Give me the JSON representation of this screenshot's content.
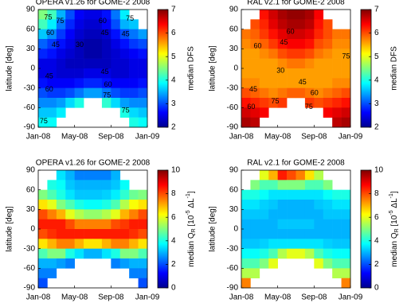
{
  "chart_data": [
    {
      "type": "heatmap",
      "title": "OPERA v1.26 for GOME-2 2008",
      "ylabel": "latitude [deg]",
      "colorbar_label": "median DFS",
      "clim": [
        2,
        7
      ],
      "cticks": [
        2,
        3,
        4,
        5,
        6,
        7
      ],
      "xlim": [
        0,
        12
      ],
      "xticks": [
        {
          "value": 0,
          "label": "Jan-08"
        },
        {
          "value": 4,
          "label": "May-08"
        },
        {
          "value": 8,
          "label": "Sep-08"
        },
        {
          "value": 12,
          "label": "Jan-09"
        }
      ],
      "ylim": [
        -90,
        90
      ],
      "yticks": [
        -90,
        -60,
        -30,
        0,
        30,
        60,
        90
      ],
      "x": [
        0.5,
        1.5,
        2.5,
        3.5,
        4.5,
        5.5,
        6.5,
        7.5,
        8.5,
        9.5,
        10.5,
        11.5
      ],
      "y": [
        82.5,
        67.5,
        52.5,
        37.5,
        22.5,
        7.5,
        -7.5,
        -22.5,
        -37.5,
        -52.5,
        -67.5,
        -82.5
      ],
      "z": [
        [
          4.5,
          4.2,
          3.5,
          3.0,
          2.6,
          2.5,
          2.5,
          2.7,
          3.2,
          3.8,
          null,
          null
        ],
        [
          4.2,
          3.8,
          3.2,
          2.8,
          2.5,
          2.4,
          2.4,
          2.6,
          3.0,
          3.5,
          3.6,
          null
        ],
        [
          3.6,
          3.3,
          2.9,
          2.6,
          2.4,
          2.3,
          2.3,
          2.4,
          2.7,
          3.0,
          3.2,
          3.4
        ],
        [
          3.1,
          2.9,
          2.7,
          2.5,
          2.3,
          2.2,
          2.2,
          2.3,
          2.5,
          2.7,
          2.9,
          3.0
        ],
        [
          2.8,
          2.7,
          2.5,
          2.4,
          2.3,
          2.2,
          2.2,
          2.3,
          2.4,
          2.5,
          2.6,
          2.7
        ],
        [
          2.5,
          2.5,
          2.4,
          2.3,
          2.3,
          2.3,
          2.3,
          2.3,
          2.4,
          2.4,
          2.5,
          2.5
        ],
        [
          2.5,
          2.5,
          2.4,
          2.4,
          2.4,
          2.5,
          2.5,
          2.5,
          2.4,
          2.4,
          2.5,
          2.5
        ],
        [
          2.7,
          2.6,
          2.6,
          2.6,
          2.7,
          2.8,
          2.8,
          2.7,
          2.6,
          2.6,
          2.6,
          2.7
        ],
        [
          3.0,
          2.9,
          2.9,
          3.0,
          3.2,
          3.4,
          3.4,
          3.2,
          3.0,
          2.9,
          2.9,
          3.0
        ],
        [
          3.3,
          3.3,
          3.4,
          3.7,
          4.0,
          null,
          null,
          4.1,
          3.7,
          3.4,
          3.3,
          3.3
        ],
        [
          3.6,
          3.6,
          3.8,
          null,
          null,
          null,
          null,
          null,
          null,
          4.0,
          3.7,
          3.6
        ],
        [
          3.9,
          3.9,
          null,
          null,
          null,
          null,
          null,
          null,
          null,
          null,
          4.0,
          3.9
        ]
      ],
      "contour_labels": [
        75,
        75,
        60,
        45,
        30,
        60,
        45,
        45,
        75,
        45,
        60,
        45,
        60,
        75,
        75,
        75
      ]
    },
    {
      "type": "heatmap",
      "title": "RAL v2.1 for GOME-2 2008",
      "ylabel": "latitude [deg]",
      "colorbar_label": "median DFS",
      "clim": [
        2,
        7
      ],
      "cticks": [
        2,
        3,
        4,
        5,
        6,
        7
      ],
      "xlim": [
        0,
        12
      ],
      "xticks": [
        {
          "value": 0,
          "label": "Jan-08"
        },
        {
          "value": 4,
          "label": "May-08"
        },
        {
          "value": 8,
          "label": "Sep-08"
        },
        {
          "value": 12,
          "label": "Jan-09"
        }
      ],
      "ylim": [
        -90,
        90
      ],
      "yticks": [
        -90,
        -60,
        -30,
        0,
        30,
        60,
        90
      ],
      "x": [
        0.5,
        1.5,
        2.5,
        3.5,
        4.5,
        5.5,
        6.5,
        7.5,
        8.5,
        9.5,
        10.5,
        11.5
      ],
      "y": [
        82.5,
        67.5,
        52.5,
        37.5,
        22.5,
        7.5,
        -7.5,
        -22.5,
        -37.5,
        -52.5,
        -67.5,
        -82.5
      ],
      "z": [
        [
          null,
          null,
          6.3,
          6.6,
          6.8,
          6.9,
          6.9,
          6.8,
          6.4,
          null,
          null,
          null
        ],
        [
          null,
          6.0,
          6.2,
          6.5,
          6.7,
          6.8,
          6.8,
          6.7,
          6.3,
          6.0,
          null,
          null
        ],
        [
          5.8,
          5.9,
          6.1,
          6.3,
          6.5,
          6.6,
          6.6,
          6.5,
          6.2,
          6.0,
          5.8,
          5.8
        ],
        [
          5.7,
          5.8,
          5.9,
          6.1,
          6.3,
          6.4,
          6.4,
          6.3,
          6.0,
          5.9,
          5.7,
          5.7
        ],
        [
          5.6,
          5.6,
          5.7,
          5.8,
          6.0,
          6.1,
          6.1,
          6.0,
          5.8,
          5.7,
          5.6,
          5.6
        ],
        [
          5.6,
          5.6,
          5.6,
          5.6,
          5.7,
          5.8,
          5.8,
          5.7,
          5.6,
          5.6,
          5.6,
          5.6
        ],
        [
          5.6,
          5.6,
          5.6,
          5.6,
          5.6,
          5.6,
          5.6,
          5.6,
          5.6,
          5.6,
          5.6,
          5.6
        ],
        [
          5.7,
          5.7,
          5.6,
          5.6,
          5.6,
          5.6,
          5.6,
          5.6,
          5.6,
          5.6,
          5.7,
          5.7
        ],
        [
          6.0,
          5.9,
          5.8,
          5.7,
          5.8,
          5.9,
          5.9,
          5.8,
          5.7,
          5.8,
          5.9,
          6.0
        ],
        [
          6.3,
          6.2,
          6.1,
          6.0,
          6.1,
          null,
          null,
          6.1,
          6.0,
          6.1,
          6.2,
          6.3
        ],
        [
          6.6,
          6.5,
          6.4,
          null,
          null,
          null,
          null,
          null,
          null,
          6.4,
          6.5,
          6.6
        ],
        [
          6.8,
          6.7,
          null,
          null,
          null,
          null,
          null,
          null,
          null,
          null,
          6.7,
          6.8
        ]
      ],
      "contour_labels": [
        60,
        45,
        60,
        75,
        30,
        45,
        45,
        60,
        60,
        75,
        75
      ]
    },
    {
      "type": "heatmap",
      "title": "OPERA v1.26 for GOME-2 2008",
      "ylabel": "latitude [deg]",
      "colorbar_label_parts": [
        {
          "text": "median Q"
        },
        {
          "text": "R",
          "role": "sub"
        },
        {
          "text": " [10"
        },
        {
          "text": "-5",
          "role": "sup"
        },
        {
          "text": " ΔL"
        },
        {
          "text": "-1",
          "role": "sup"
        },
        {
          "text": "]"
        }
      ],
      "clim": [
        0,
        10
      ],
      "cticks": [
        0,
        2,
        4,
        6,
        8,
        10
      ],
      "xlim": [
        0,
        12
      ],
      "xticks": [
        {
          "value": 0,
          "label": "Jan-08"
        },
        {
          "value": 4,
          "label": "May-08"
        },
        {
          "value": 8,
          "label": "Sep-08"
        },
        {
          "value": 12,
          "label": "Jan-09"
        }
      ],
      "ylim": [
        -90,
        90
      ],
      "yticks": [
        -90,
        -60,
        -30,
        0,
        30,
        60,
        90
      ],
      "x": [
        0.5,
        1.5,
        2.5,
        3.5,
        4.5,
        5.5,
        6.5,
        7.5,
        8.5,
        9.5,
        10.5,
        11.5
      ],
      "y": [
        82.5,
        67.5,
        52.5,
        37.5,
        22.5,
        7.5,
        -7.5,
        -22.5,
        -37.5,
        -52.5,
        -67.5,
        -82.5
      ],
      "z": [
        [
          null,
          null,
          3.5,
          3.0,
          2.5,
          2.5,
          2.5,
          2.5,
          3.0,
          null,
          null,
          null
        ],
        [
          null,
          4.0,
          3.8,
          3.2,
          3.0,
          3.0,
          3.0,
          3.0,
          3.2,
          3.8,
          null,
          null
        ],
        [
          5.0,
          4.5,
          4.0,
          3.5,
          3.2,
          3.2,
          3.2,
          3.3,
          3.6,
          4.2,
          4.8,
          5.0
        ],
        [
          6.5,
          6.0,
          5.0,
          4.5,
          4.0,
          3.8,
          3.8,
          4.0,
          4.5,
          5.5,
          6.2,
          6.5
        ],
        [
          8.0,
          7.5,
          7.0,
          6.0,
          5.5,
          5.2,
          5.2,
          5.5,
          6.0,
          7.0,
          7.5,
          8.0
        ],
        [
          8.5,
          8.5,
          8.5,
          8.0,
          7.5,
          7.5,
          7.5,
          7.5,
          8.0,
          8.2,
          8.5,
          8.5
        ],
        [
          8.0,
          8.3,
          8.5,
          8.5,
          8.5,
          8.5,
          8.5,
          8.5,
          8.5,
          8.5,
          8.3,
          8.0
        ],
        [
          6.5,
          7.0,
          7.5,
          7.5,
          7.0,
          6.5,
          6.5,
          7.0,
          7.5,
          7.5,
          7.0,
          6.5
        ],
        [
          4.5,
          5.0,
          5.0,
          4.0,
          3.5,
          3.0,
          3.0,
          3.5,
          4.0,
          5.0,
          5.0,
          4.5
        ],
        [
          3.0,
          3.0,
          2.8,
          2.5,
          null,
          null,
          null,
          null,
          2.5,
          2.8,
          3.0,
          3.0
        ],
        [
          2.5,
          2.5,
          null,
          null,
          null,
          null,
          null,
          null,
          null,
          null,
          2.5,
          2.5
        ],
        [
          2.0,
          null,
          null,
          null,
          null,
          null,
          null,
          null,
          null,
          null,
          null,
          2.0
        ]
      ]
    },
    {
      "type": "heatmap",
      "title": "RAL v2.1 for GOME-2 2008",
      "ylabel": "latitude [deg]",
      "colorbar_label_parts": [
        {
          "text": "median Q"
        },
        {
          "text": "R",
          "role": "sub"
        },
        {
          "text": " [10"
        },
        {
          "text": "-5",
          "role": "sup"
        },
        {
          "text": " ΔL"
        },
        {
          "text": "-1",
          "role": "sup"
        },
        {
          "text": "]"
        }
      ],
      "clim": [
        0,
        10
      ],
      "cticks": [
        0,
        2,
        4,
        6,
        8,
        10
      ],
      "xlim": [
        0,
        12
      ],
      "xticks": [
        {
          "value": 0,
          "label": "Jan-08"
        },
        {
          "value": 4,
          "label": "May-08"
        },
        {
          "value": 8,
          "label": "Sep-08"
        },
        {
          "value": 12,
          "label": "Jan-09"
        }
      ],
      "ylim": [
        -90,
        90
      ],
      "yticks": [
        -90,
        -60,
        -30,
        0,
        30,
        60,
        90
      ],
      "x": [
        0.5,
        1.5,
        2.5,
        3.5,
        4.5,
        5.5,
        6.5,
        7.5,
        8.5,
        9.5,
        10.5,
        11.5
      ],
      "y": [
        82.5,
        67.5,
        52.5,
        37.5,
        22.5,
        7.5,
        -7.5,
        -22.5,
        -37.5,
        -52.5,
        -67.5,
        -82.5
      ],
      "z": [
        [
          null,
          null,
          6.0,
          7.0,
          8.5,
          8.0,
          7.5,
          6.5,
          5.5,
          null,
          null,
          null
        ],
        [
          null,
          5.0,
          4.5,
          4.5,
          5.0,
          5.0,
          5.0,
          4.5,
          4.5,
          5.0,
          null,
          null
        ],
        [
          4.0,
          4.0,
          3.8,
          3.5,
          3.5,
          3.5,
          3.5,
          3.5,
          3.5,
          3.8,
          4.0,
          4.0
        ],
        [
          3.5,
          3.5,
          3.3,
          3.2,
          3.0,
          3.0,
          3.0,
          3.0,
          3.2,
          3.3,
          3.5,
          3.5
        ],
        [
          3.2,
          3.2,
          3.2,
          3.0,
          3.0,
          3.0,
          3.0,
          3.0,
          3.0,
          3.2,
          3.2,
          3.2
        ],
        [
          3.0,
          3.0,
          3.0,
          3.0,
          3.2,
          3.2,
          3.2,
          3.2,
          3.0,
          3.0,
          3.0,
          3.0
        ],
        [
          3.0,
          3.0,
          3.0,
          3.0,
          3.0,
          3.0,
          3.0,
          3.0,
          3.0,
          3.0,
          3.0,
          3.0
        ],
        [
          3.2,
          3.2,
          3.3,
          3.5,
          3.5,
          3.5,
          3.5,
          3.5,
          3.5,
          3.3,
          3.2,
          3.2
        ],
        [
          3.8,
          3.8,
          4.0,
          4.5,
          5.5,
          6.0,
          6.0,
          5.5,
          4.5,
          4.0,
          3.8,
          3.8
        ],
        [
          4.5,
          4.5,
          5.0,
          6.0,
          null,
          null,
          null,
          null,
          6.0,
          5.0,
          4.5,
          4.5
        ],
        [
          5.5,
          5.5,
          null,
          null,
          null,
          null,
          null,
          null,
          null,
          null,
          5.5,
          5.5
        ],
        [
          7.5,
          null,
          null,
          null,
          null,
          null,
          null,
          null,
          null,
          null,
          null,
          7.5
        ]
      ]
    }
  ]
}
